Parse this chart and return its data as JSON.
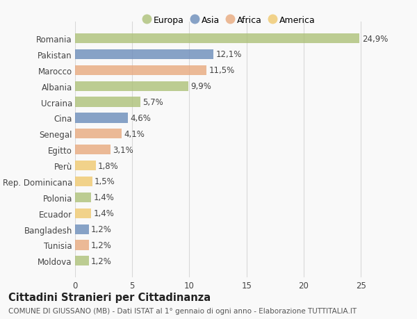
{
  "countries": [
    "Romania",
    "Pakistan",
    "Marocco",
    "Albania",
    "Ucraina",
    "Cina",
    "Senegal",
    "Egitto",
    "Perù",
    "Rep. Dominicana",
    "Polonia",
    "Ecuador",
    "Bangladesh",
    "Tunisia",
    "Moldova"
  ],
  "values": [
    24.9,
    12.1,
    11.5,
    9.9,
    5.7,
    4.6,
    4.1,
    3.1,
    1.8,
    1.5,
    1.4,
    1.4,
    1.2,
    1.2,
    1.2
  ],
  "labels": [
    "24,9%",
    "12,1%",
    "11,5%",
    "9,9%",
    "5,7%",
    "4,6%",
    "4,1%",
    "3,1%",
    "1,8%",
    "1,5%",
    "1,4%",
    "1,4%",
    "1,2%",
    "1,2%",
    "1,2%"
  ],
  "colors": [
    "#adc178",
    "#6b8cba",
    "#e8a97e",
    "#adc178",
    "#adc178",
    "#6b8cba",
    "#e8a97e",
    "#e8a97e",
    "#f0c96e",
    "#f0c96e",
    "#adc178",
    "#f0c96e",
    "#6b8cba",
    "#e8a97e",
    "#adc178"
  ],
  "legend_labels": [
    "Europa",
    "Asia",
    "Africa",
    "America"
  ],
  "legend_colors": [
    "#adc178",
    "#6b8cba",
    "#e8a97e",
    "#f0c96e"
  ],
  "title": "Cittadini Stranieri per Cittadinanza",
  "subtitle": "COMUNE DI GIUSSANO (MB) - Dati ISTAT al 1° gennaio di ogni anno - Elaborazione TUTTITALIA.IT",
  "xlim": [
    0,
    27
  ],
  "xticks": [
    0,
    5,
    10,
    15,
    20,
    25
  ],
  "background_color": "#f9f9f9",
  "grid_color": "#d8d8d8",
  "bar_alpha": 0.8,
  "label_fontsize": 8.5,
  "tick_fontsize": 8.5,
  "title_fontsize": 10.5,
  "subtitle_fontsize": 7.5
}
